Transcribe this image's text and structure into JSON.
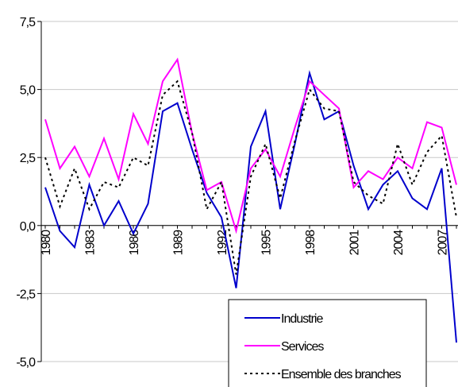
{
  "chart_data": {
    "type": "line",
    "categories": [
      "1980",
      null,
      null,
      "1983",
      null,
      null,
      "1986",
      null,
      null,
      "1989",
      null,
      null,
      "1992",
      null,
      null,
      "1995",
      null,
      null,
      "1998",
      null,
      null,
      "2001",
      null,
      null,
      "2004",
      null,
      null,
      "2007",
      null
    ],
    "series": [
      {
        "name": "Industrie",
        "color": "#0000cc",
        "values": [
          1.4,
          -0.2,
          -0.8,
          1.5,
          0.0,
          0.9,
          -0.3,
          0.8,
          4.2,
          4.5,
          2.8,
          1.2,
          0.3,
          -2.3,
          2.9,
          4.2,
          0.6,
          3.0,
          5.6,
          3.9,
          4.2,
          2.2,
          0.6,
          1.5,
          2.0,
          1.0,
          0.6,
          2.1,
          -4.3
        ]
      },
      {
        "name": "Services",
        "color": "#ff00ff",
        "values": [
          3.9,
          2.1,
          2.9,
          1.8,
          3.2,
          1.7,
          4.1,
          3.0,
          5.3,
          6.1,
          3.4,
          1.3,
          1.6,
          -0.2,
          2.1,
          2.8,
          1.8,
          3.6,
          5.3,
          4.8,
          4.3,
          1.4,
          2.0,
          1.7,
          2.5,
          2.1,
          3.8,
          3.6,
          1.5
        ]
      },
      {
        "name": "Ensemble des branches",
        "color": "#000000",
        "values": [
          2.5,
          0.7,
          2.1,
          0.6,
          1.6,
          1.4,
          2.5,
          2.2,
          4.8,
          5.3,
          3.4,
          0.6,
          1.6,
          -1.8,
          1.8,
          3.0,
          1.0,
          3.1,
          5.0,
          4.3,
          4.2,
          1.6,
          1.1,
          0.8,
          3.0,
          1.5,
          2.7,
          3.3,
          0.3
        ]
      }
    ],
    "ylim": [
      -5.0,
      7.5
    ],
    "yticks": [
      {
        "value": -5.0,
        "label": "-5,0"
      },
      {
        "value": -2.5,
        "label": "-2,5"
      },
      {
        "value": 0.0,
        "label": "0,0"
      },
      {
        "value": 2.5,
        "label": "2,5"
      },
      {
        "value": 5.0,
        "label": "5,0"
      },
      {
        "value": 7.5,
        "label": "7,5"
      }
    ],
    "grid": true,
    "legend": "lower right"
  }
}
